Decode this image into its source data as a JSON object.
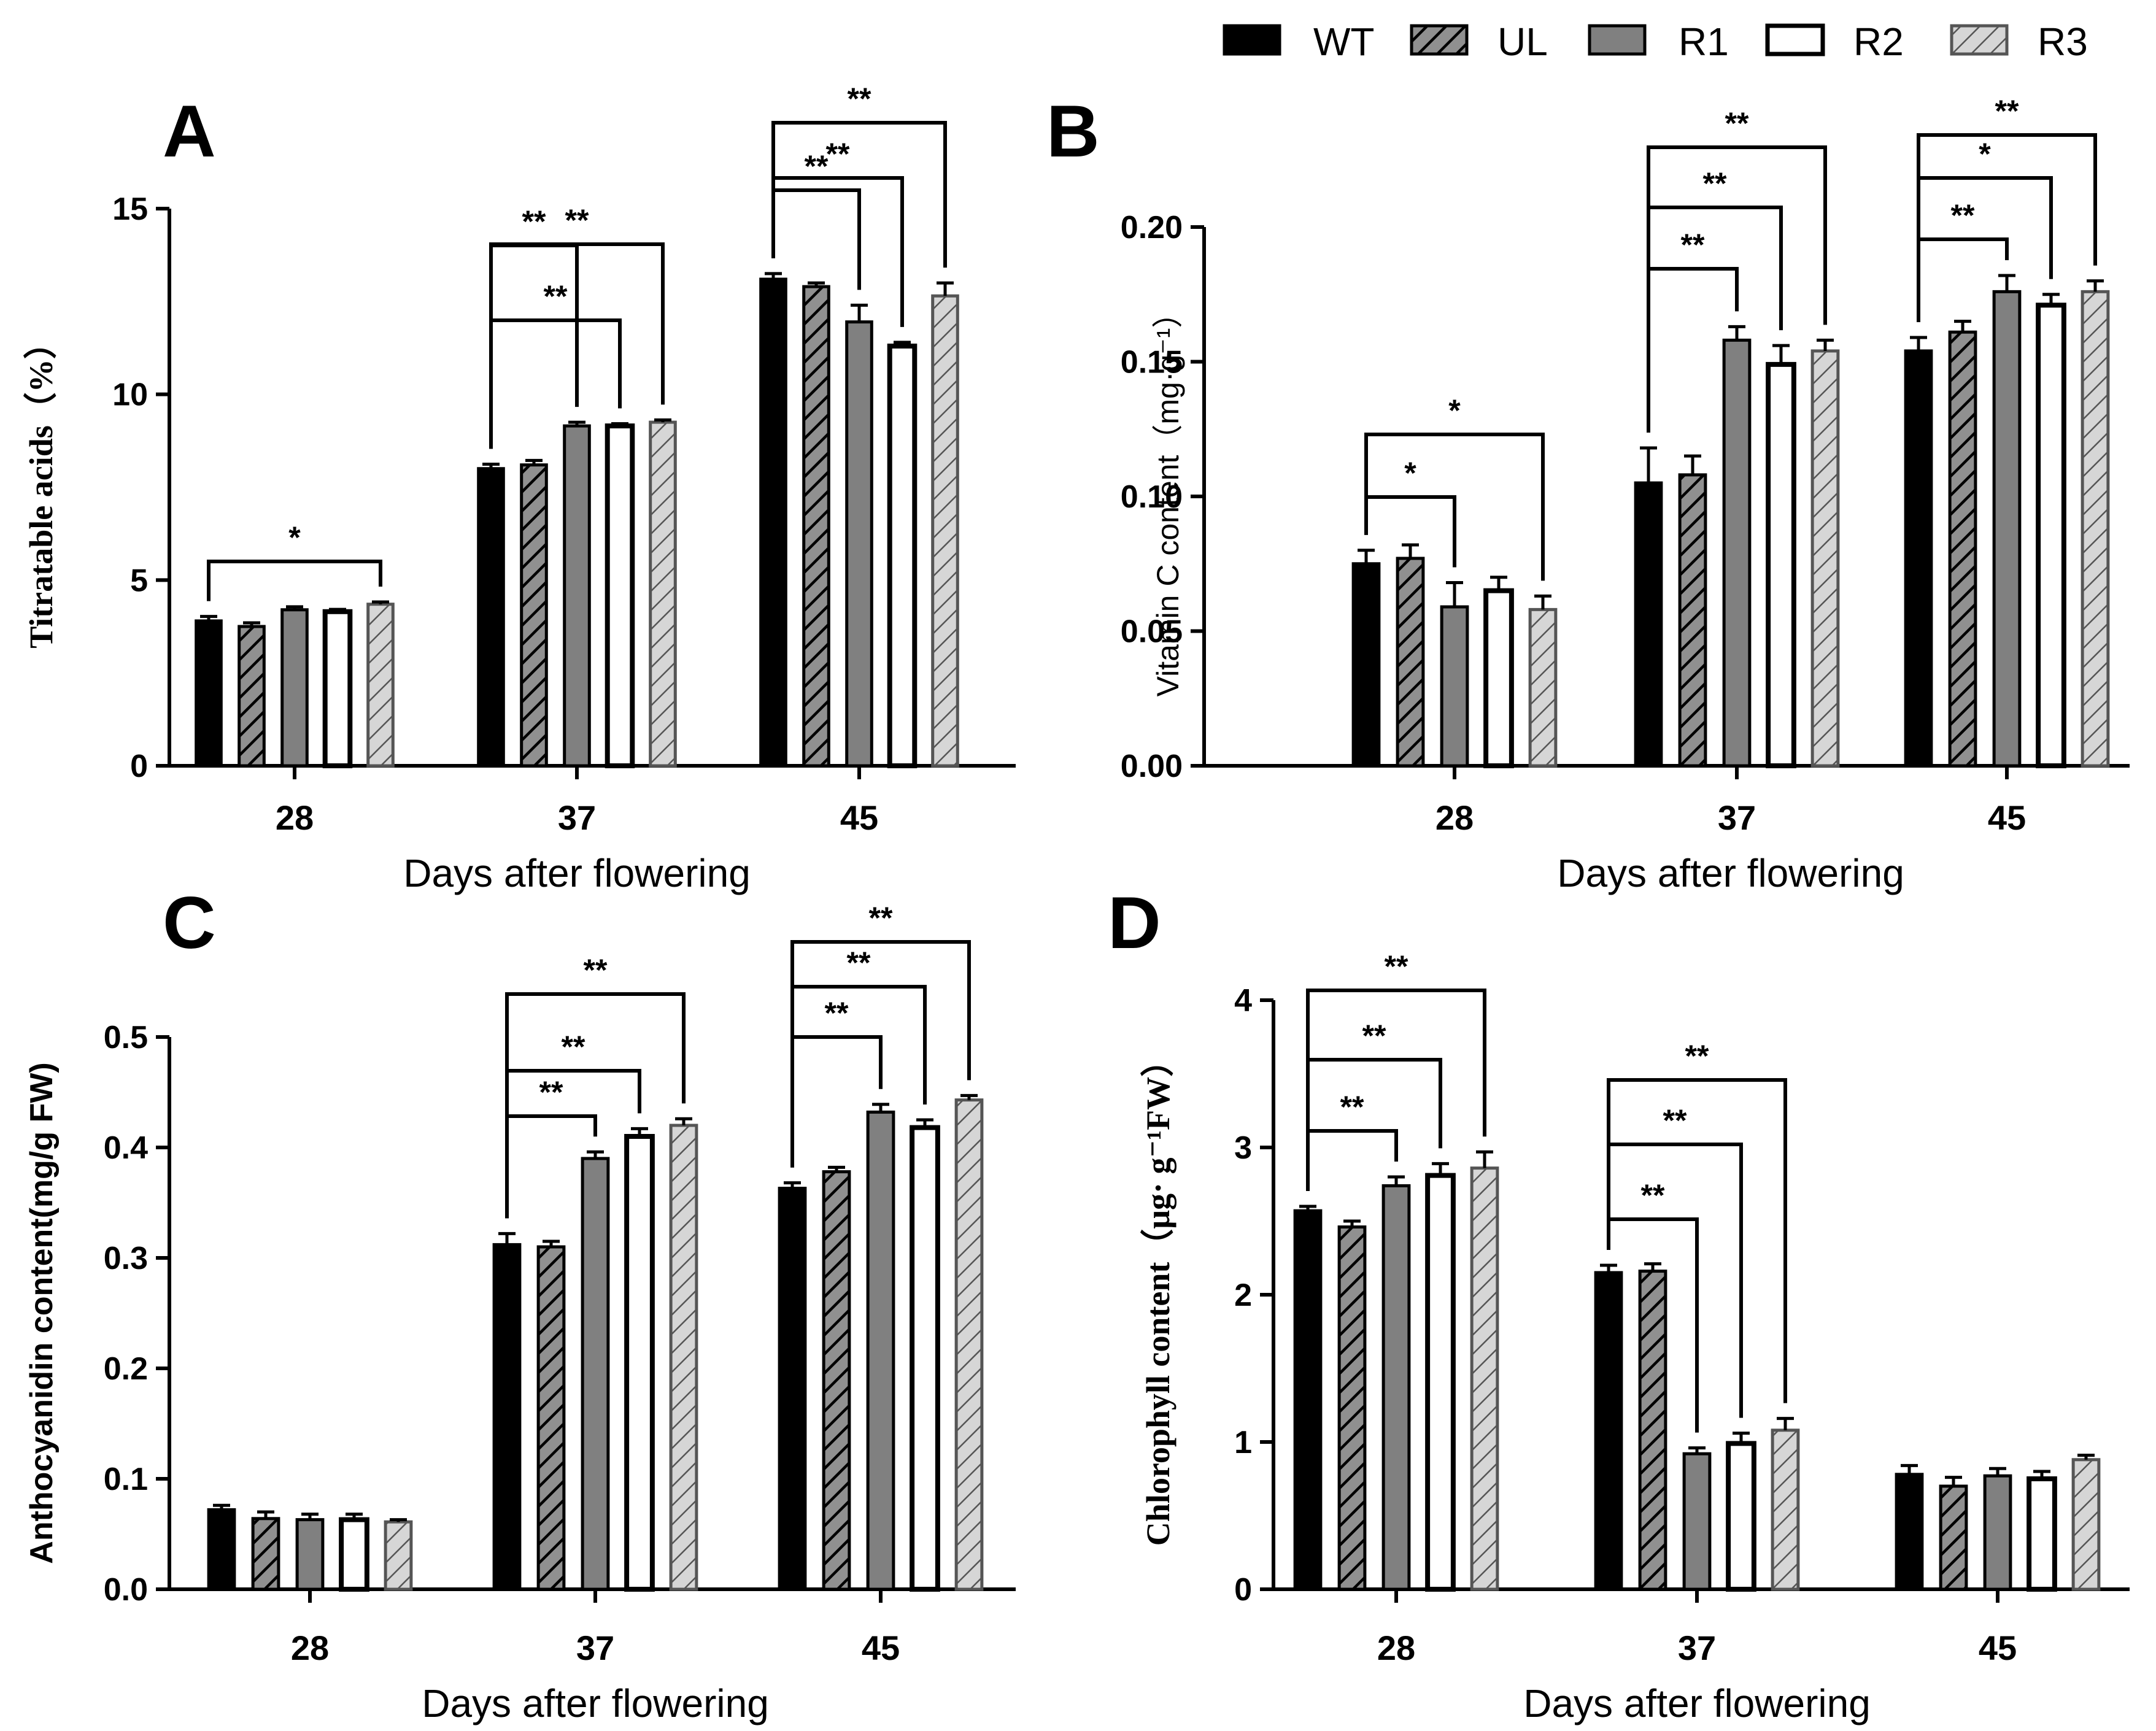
{
  "legend": {
    "items": [
      {
        "key": "WT",
        "label": "WT",
        "style": "solid-black"
      },
      {
        "key": "UL",
        "label": "UL",
        "style": "hatch-dark"
      },
      {
        "key": "R1",
        "label": "R1",
        "style": "solid-gray"
      },
      {
        "key": "R2",
        "label": "R2",
        "style": "white"
      },
      {
        "key": "R3",
        "label": "R3",
        "style": "hatch-light"
      }
    ]
  },
  "colors": {
    "black": "#000000",
    "gray": "#808080",
    "hatch_dark_bg": "#909090",
    "hatch_light_bg": "#d6d6d6",
    "white": "#ffffff"
  },
  "chart_data": [
    {
      "panel": "A",
      "type": "bar",
      "categories": [
        "28",
        "37",
        "45"
      ],
      "xlabel": "Days after flowering",
      "ylabel": "Titratable acids（%）",
      "ylim": [
        0,
        15
      ],
      "yticks": [
        "0",
        "5",
        "10",
        "15"
      ],
      "series": [
        {
          "name": "WT",
          "values": [
            3.9,
            8.0,
            13.1
          ],
          "errors": [
            0.12,
            0.12,
            0.15
          ]
        },
        {
          "name": "UL",
          "values": [
            3.75,
            8.1,
            12.9
          ],
          "errors": [
            0.1,
            0.12,
            0.1
          ]
        },
        {
          "name": "R1",
          "values": [
            4.2,
            9.15,
            11.95
          ],
          "errors": [
            0.08,
            0.1,
            0.45
          ]
        },
        {
          "name": "R2",
          "values": [
            4.15,
            9.15,
            11.3
          ],
          "errors": [
            0.06,
            0.06,
            0.1
          ]
        },
        {
          "name": "R3",
          "values": [
            4.35,
            9.25,
            12.65
          ],
          "errors": [
            0.06,
            0.06,
            0.35
          ]
        }
      ],
      "significance": [
        {
          "category": 0,
          "from": 0,
          "to": 4,
          "label": "*"
        },
        {
          "category": 1,
          "from": 0,
          "to": 2,
          "label": "**"
        },
        {
          "category": 1,
          "from": 0,
          "to": 3,
          "label": "**"
        },
        {
          "category": 1,
          "from": 0,
          "to": 4,
          "label": "**"
        },
        {
          "category": 2,
          "from": 0,
          "to": 2,
          "label": "**"
        },
        {
          "category": 2,
          "from": 0,
          "to": 3,
          "label": "**"
        },
        {
          "category": 2,
          "from": 0,
          "to": 4,
          "label": "**"
        }
      ]
    },
    {
      "panel": "B",
      "type": "bar",
      "categories": [
        "28",
        "37",
        "45"
      ],
      "xlabel": "Days after flowering",
      "ylabel": "Vitamin C content（mg·g⁻¹）",
      "ylim": [
        0,
        0.2
      ],
      "yticks": [
        "0.00",
        "0.05",
        "0.10",
        "0.15",
        "0.20"
      ],
      "series": [
        {
          "name": "WT",
          "values": [
            0.075,
            0.105,
            0.154
          ],
          "errors": [
            0.005,
            0.013,
            0.005
          ]
        },
        {
          "name": "UL",
          "values": [
            0.077,
            0.108,
            0.161
          ],
          "errors": [
            0.005,
            0.007,
            0.004
          ]
        },
        {
          "name": "R1",
          "values": [
            0.059,
            0.158,
            0.176
          ],
          "errors": [
            0.009,
            0.005,
            0.006
          ]
        },
        {
          "name": "R2",
          "values": [
            0.065,
            0.149,
            0.171
          ],
          "errors": [
            0.005,
            0.007,
            0.004
          ]
        },
        {
          "name": "R3",
          "values": [
            0.058,
            0.154,
            0.176
          ],
          "errors": [
            0.005,
            0.004,
            0.004
          ]
        }
      ],
      "significance": [
        {
          "category": 0,
          "from": 0,
          "to": 2,
          "label": "*"
        },
        {
          "category": 0,
          "from": 0,
          "to": 4,
          "label": "*"
        },
        {
          "category": 1,
          "from": 0,
          "to": 2,
          "label": "**"
        },
        {
          "category": 1,
          "from": 0,
          "to": 3,
          "label": "**"
        },
        {
          "category": 1,
          "from": 0,
          "to": 4,
          "label": "**"
        },
        {
          "category": 2,
          "from": 0,
          "to": 2,
          "label": "**"
        },
        {
          "category": 2,
          "from": 0,
          "to": 3,
          "label": "*"
        },
        {
          "category": 2,
          "from": 0,
          "to": 4,
          "label": "**"
        }
      ]
    },
    {
      "panel": "C",
      "type": "bar",
      "categories": [
        "28",
        "37",
        "45"
      ],
      "xlabel": "Days after flowering",
      "ylabel": "Anthocyanidin content(mg/g FW)",
      "ylim": [
        0,
        0.5
      ],
      "yticks": [
        "0.0",
        "0.1",
        "0.2",
        "0.3",
        "0.4",
        "0.5"
      ],
      "series": [
        {
          "name": "WT",
          "values": [
            0.072,
            0.312,
            0.363
          ],
          "errors": [
            0.004,
            0.01,
            0.005
          ]
        },
        {
          "name": "UL",
          "values": [
            0.064,
            0.31,
            0.378
          ],
          "errors": [
            0.006,
            0.005,
            0.004
          ]
        },
        {
          "name": "R1",
          "values": [
            0.063,
            0.39,
            0.432
          ],
          "errors": [
            0.005,
            0.006,
            0.007
          ]
        },
        {
          "name": "R2",
          "values": [
            0.063,
            0.41,
            0.418
          ],
          "errors": [
            0.005,
            0.007,
            0.007
          ]
        },
        {
          "name": "R3",
          "values": [
            0.061,
            0.42,
            0.443
          ],
          "errors": [
            0.002,
            0.006,
            0.004
          ]
        }
      ],
      "significance": [
        {
          "category": 1,
          "from": 0,
          "to": 2,
          "label": "**"
        },
        {
          "category": 1,
          "from": 0,
          "to": 3,
          "label": "**"
        },
        {
          "category": 1,
          "from": 0,
          "to": 4,
          "label": "**"
        },
        {
          "category": 2,
          "from": 0,
          "to": 2,
          "label": "**"
        },
        {
          "category": 2,
          "from": 0,
          "to": 3,
          "label": "**"
        },
        {
          "category": 2,
          "from": 0,
          "to": 4,
          "label": "**"
        }
      ]
    },
    {
      "panel": "D",
      "type": "bar",
      "categories": [
        "28",
        "37",
        "45"
      ],
      "xlabel": "Days after flowering",
      "ylabel": "Chlorophyll content（μg· g⁻¹FW）",
      "ylim": [
        0,
        4
      ],
      "yticks": [
        "0",
        "1",
        "2",
        "3",
        "4"
      ],
      "series": [
        {
          "name": "WT",
          "values": [
            2.57,
            2.15,
            0.78
          ],
          "errors": [
            0.03,
            0.05,
            0.06
          ]
        },
        {
          "name": "UL",
          "values": [
            2.46,
            2.16,
            0.7
          ],
          "errors": [
            0.04,
            0.05,
            0.06
          ]
        },
        {
          "name": "R1",
          "values": [
            2.74,
            0.92,
            0.77
          ],
          "errors": [
            0.06,
            0.04,
            0.05
          ]
        },
        {
          "name": "R2",
          "values": [
            2.81,
            0.99,
            0.75
          ],
          "errors": [
            0.08,
            0.07,
            0.05
          ]
        },
        {
          "name": "R3",
          "values": [
            2.86,
            1.08,
            0.88
          ],
          "errors": [
            0.11,
            0.08,
            0.03
          ]
        }
      ],
      "significance": [
        {
          "category": 0,
          "from": 0,
          "to": 2,
          "label": "**"
        },
        {
          "category": 0,
          "from": 0,
          "to": 3,
          "label": "**"
        },
        {
          "category": 0,
          "from": 0,
          "to": 4,
          "label": "**"
        },
        {
          "category": 1,
          "from": 0,
          "to": 2,
          "label": "**"
        },
        {
          "category": 1,
          "from": 0,
          "to": 3,
          "label": "**"
        },
        {
          "category": 1,
          "from": 0,
          "to": 4,
          "label": "**"
        }
      ]
    }
  ]
}
